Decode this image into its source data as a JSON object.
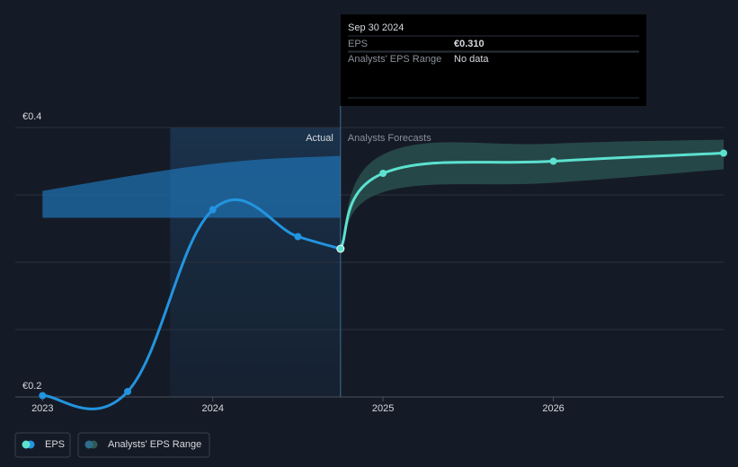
{
  "chart_data": {
    "type": "line",
    "xlim": [
      2022.84,
      2027
    ],
    "xticks": [
      2023,
      2024,
      2025,
      2026
    ],
    "ylim": [
      0.2,
      0.4
    ],
    "yticks": [
      {
        "value": 0.2,
        "label": "€0.2"
      },
      {
        "value": 0.25,
        "label": null
      },
      {
        "value": 0.3,
        "label": null
      },
      {
        "value": 0.35,
        "label": null
      },
      {
        "value": 0.4,
        "label": "€0.4"
      }
    ],
    "grid": true,
    "highlight": {
      "x": [
        2023.75,
        2024.75
      ],
      "actual_label": "Actual",
      "forecast_label": "Analysts Forecasts"
    },
    "series": [
      {
        "name": "EPS",
        "color": "#2394df",
        "x": [
          2023,
          2023.5,
          2024,
          2024.5,
          2024.75
        ],
        "values": [
          0.201,
          0.204,
          0.339,
          0.319,
          0.31
        ]
      }
    ],
    "forecast": {
      "color": "#5ce1d0",
      "x": [
        2024.75,
        2025,
        2026,
        2027
      ],
      "values": [
        0.31,
        0.366,
        0.375,
        0.381
      ]
    },
    "range": {
      "name": "Analysts' EPS Range",
      "past": {
        "color": "#1f6fae",
        "x": [
          2023,
          2024,
          2024.75
        ],
        "low": [
          0.333,
          0.333,
          0.333
        ],
        "high": [
          0.353,
          0.373,
          0.379
        ]
      },
      "future": {
        "color": "#2e5a55",
        "x": [
          2024.75,
          2025,
          2026,
          2027
        ],
        "low": [
          0.31,
          0.352,
          0.359,
          0.369
        ],
        "high": [
          0.31,
          0.38,
          0.388,
          0.391
        ]
      }
    },
    "tooltip": {
      "date": "Sep 30 2024",
      "rows": [
        {
          "label": "EPS",
          "value": "€0.310"
        },
        {
          "label": "Analysts' EPS Range",
          "value": "No data"
        }
      ]
    },
    "legend": [
      "EPS",
      "Analysts' EPS Range"
    ]
  }
}
